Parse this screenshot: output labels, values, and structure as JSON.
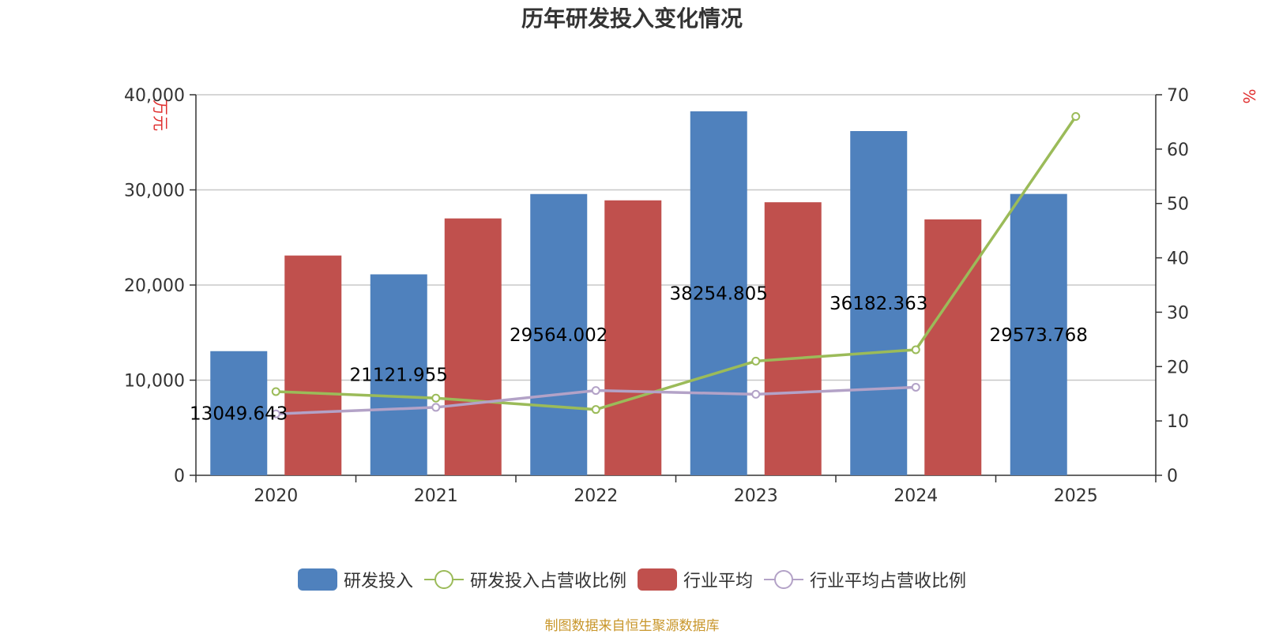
{
  "title": "历年研发投入变化情况",
  "source": "制图数据来自恒生聚源数据库",
  "chart_data": {
    "type": "bar",
    "title": "历年研发投入变化情况",
    "categories": [
      "2020",
      "2021",
      "2022",
      "2023",
      "2024",
      "2025"
    ],
    "y_left": {
      "label": "万元",
      "min": 0,
      "max": 40000,
      "ticks": [
        "0",
        "10,000",
        "20,000",
        "30,000",
        "40,000"
      ]
    },
    "y_right": {
      "label": "%",
      "min": 0,
      "max": 70,
      "ticks": [
        "0",
        "10",
        "20",
        "30",
        "40",
        "50",
        "60",
        "70"
      ]
    },
    "grid": true,
    "legend_position": "bottom",
    "series": [
      {
        "name": "研发投入",
        "kind": "bar",
        "axis": "left",
        "color": "#4f81bd",
        "values": [
          13049.643,
          21121.955,
          29564.002,
          38254.805,
          36182.363,
          29573.768
        ],
        "labels": [
          "13049.643",
          "21121.955",
          "29564.002",
          "38254.805",
          "36182.363",
          "29573.768"
        ]
      },
      {
        "name": "研发投入占营收比例",
        "kind": "line",
        "axis": "right",
        "color": "#9bbb59",
        "values": [
          15.4,
          14.2,
          12.1,
          21.0,
          23.1,
          66.0
        ]
      },
      {
        "name": "行业平均",
        "kind": "bar",
        "axis": "left",
        "color": "#c0504d",
        "values": [
          23100,
          27000,
          28900,
          28700,
          26900,
          null
        ]
      },
      {
        "name": "行业平均占营收比例",
        "kind": "line",
        "axis": "right",
        "color": "#b3a2c7",
        "values": [
          11.3,
          12.5,
          15.6,
          14.9,
          16.2,
          null
        ]
      }
    ]
  }
}
